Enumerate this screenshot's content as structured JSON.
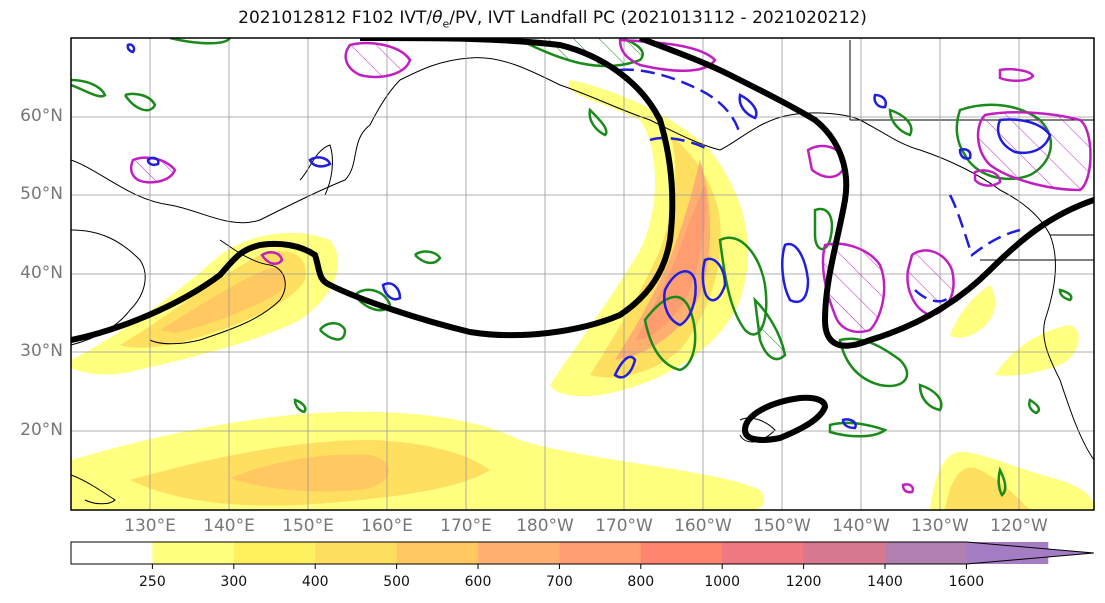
{
  "title": {
    "prefix": "2021012812 F102 IVT/",
    "theta": "θ",
    "sub": "e",
    "suffix": "/PV, IVT Landfall PC (2021013112 - 2021020212)"
  },
  "lat_labels": [
    "60°N",
    "50°N",
    "40°N",
    "30°N",
    "20°N"
  ],
  "lon_labels": [
    "130°E",
    "140°E",
    "150°E",
    "160°E",
    "170°E",
    "180°W",
    "170°W",
    "160°W",
    "150°W",
    "140°W",
    "130°W",
    "120°W"
  ],
  "colorbar": {
    "ticks": [
      "250",
      "300",
      "400",
      "500",
      "600",
      "700",
      "800",
      "1000",
      "1200",
      "1400",
      "1600"
    ],
    "colors": [
      "#ffffff",
      "#ffff80",
      "#fff060",
      "#ffdf60",
      "#ffc860",
      "#ffb070",
      "#ff9c70",
      "#ff8470",
      "#f07880",
      "#d87890",
      "#b080b0",
      "#a47cc4"
    ]
  },
  "legend_colors": {
    "landfall_contour": "#000000",
    "theta_e": "#1f1fdd",
    "pv": "#c020c0",
    "green": "#1a8a1a"
  }
}
